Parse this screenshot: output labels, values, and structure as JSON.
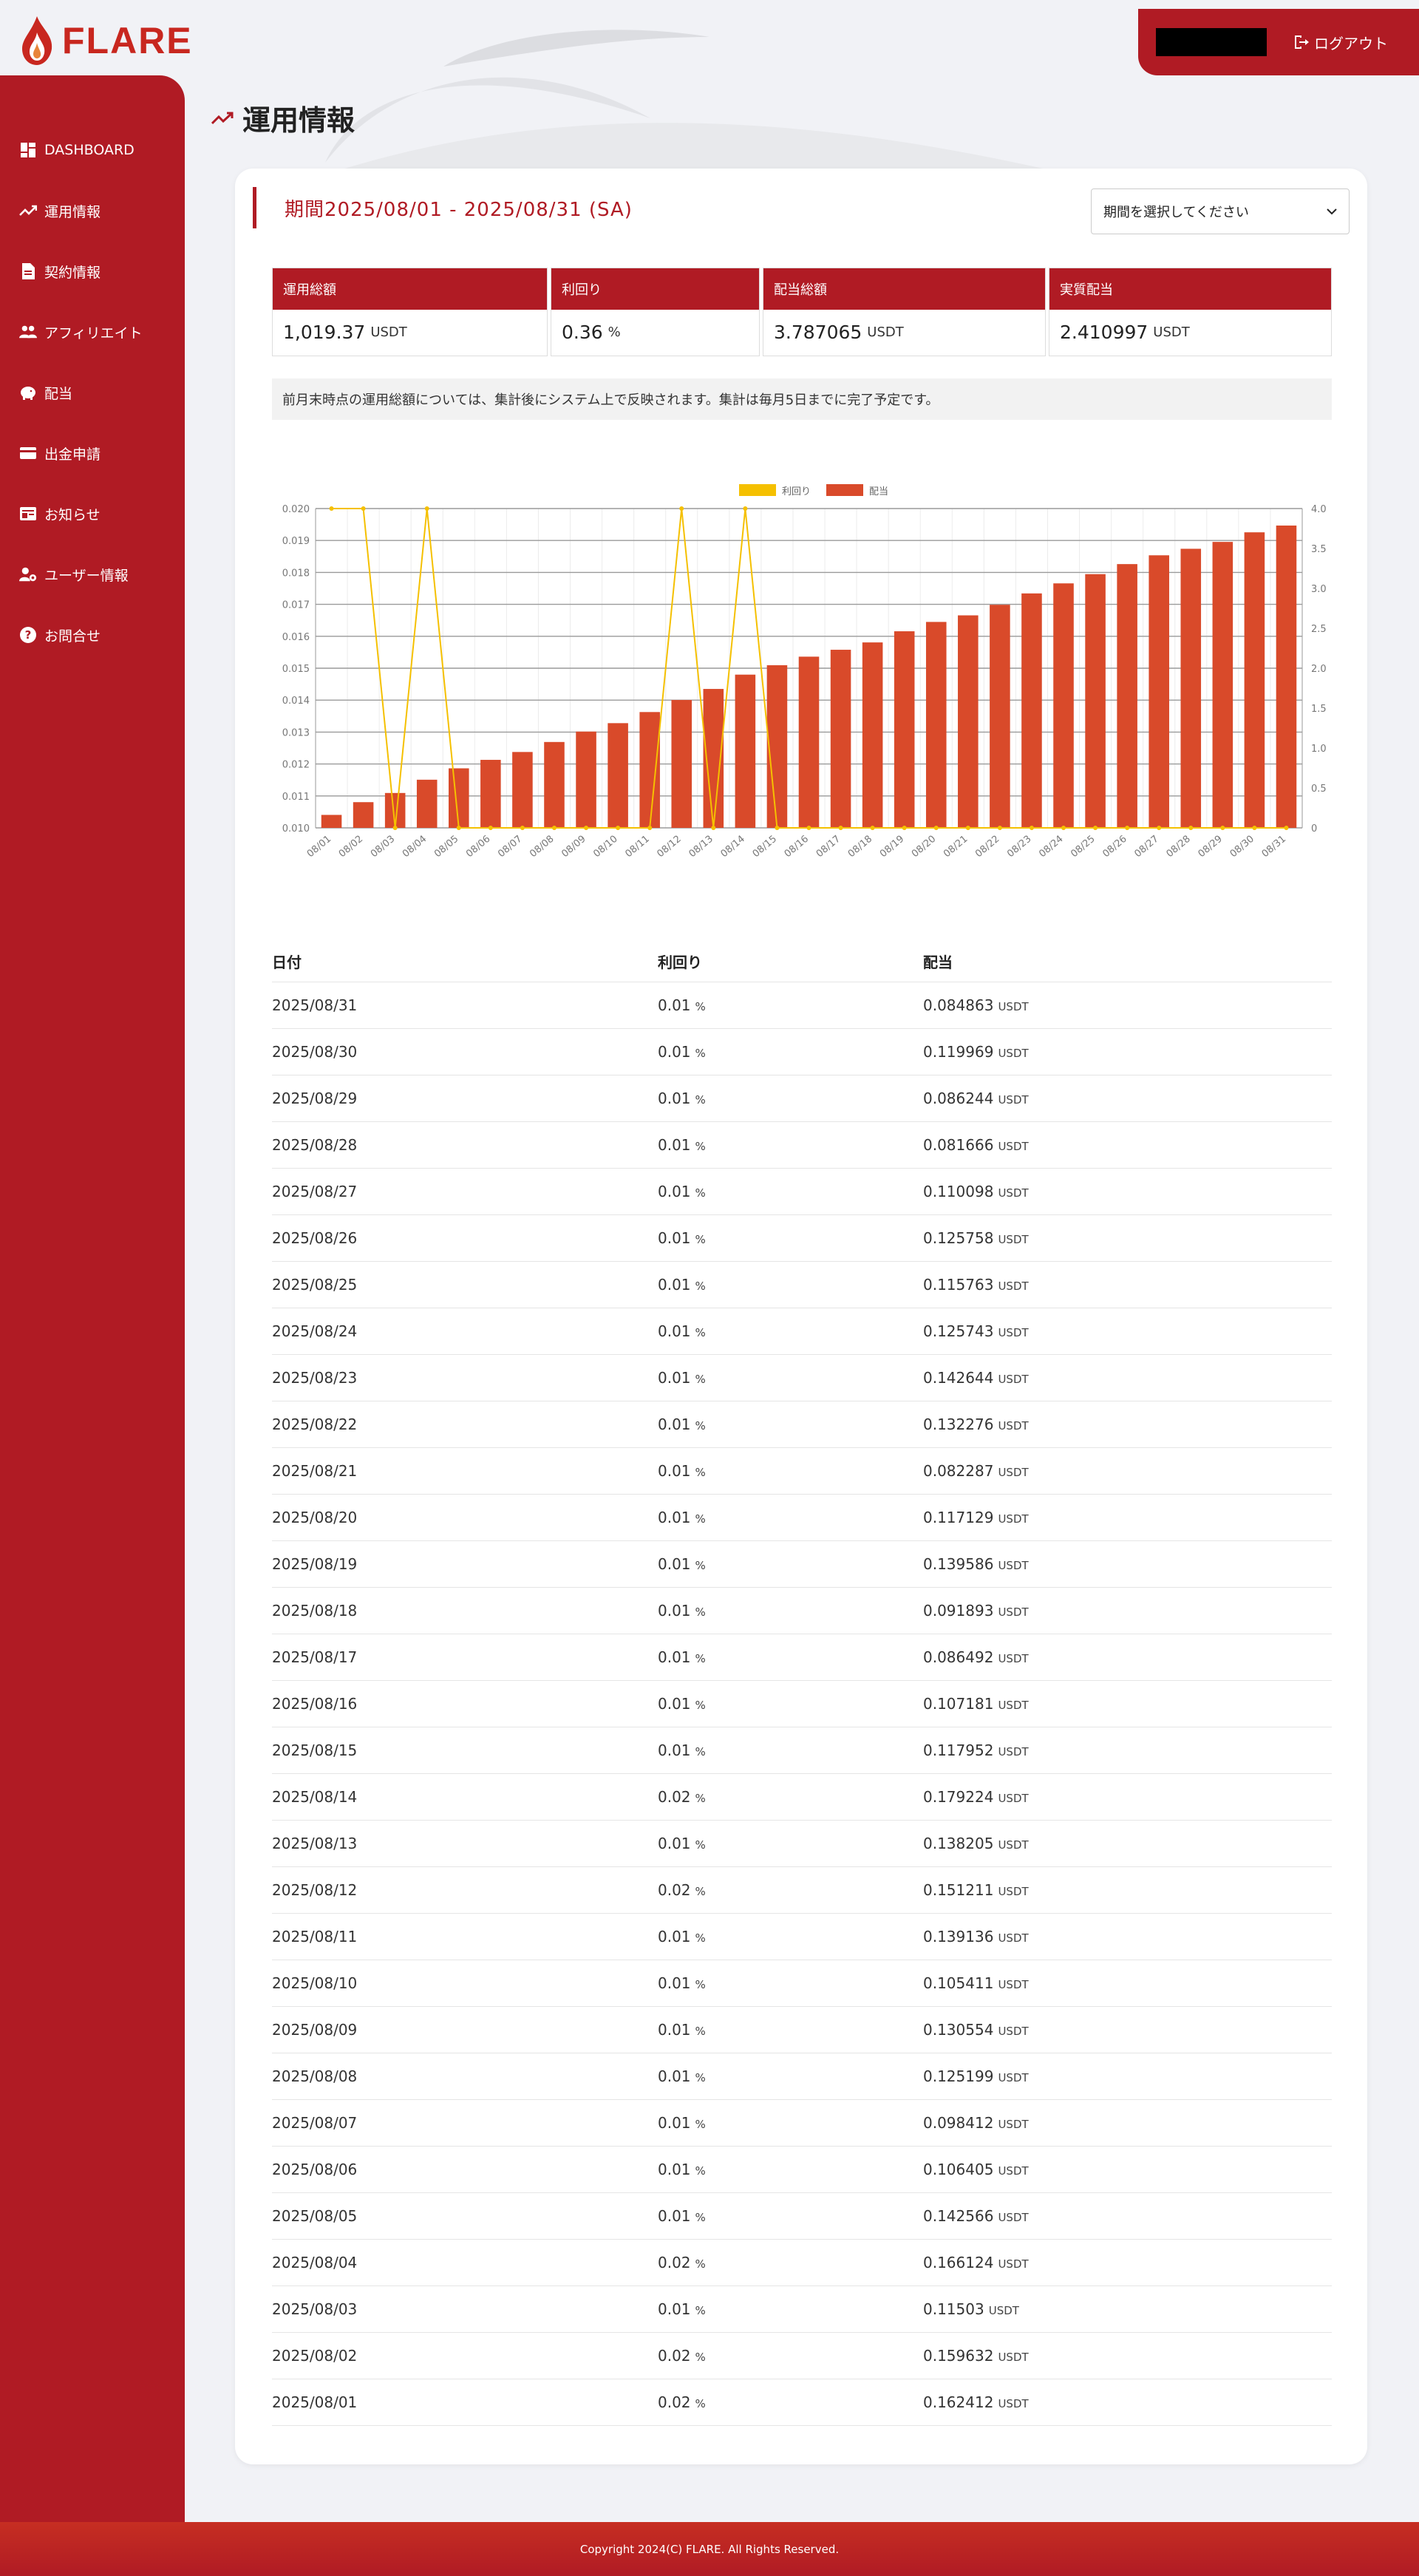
{
  "header": {
    "brand": "FLARE",
    "logout_label": "ログアウト"
  },
  "sidebar": {
    "items": [
      {
        "label": "DASHBOARD",
        "icon": "dashboard-icon"
      },
      {
        "label": "運用情報",
        "icon": "trending-icon"
      },
      {
        "label": "契約情報",
        "icon": "document-icon"
      },
      {
        "label": "アフィリエイト",
        "icon": "people-icon"
      },
      {
        "label": "配当",
        "icon": "piggy-bank-icon"
      },
      {
        "label": "出金申請",
        "icon": "card-icon"
      },
      {
        "label": "お知らせ",
        "icon": "news-icon"
      },
      {
        "label": "ユーザー情報",
        "icon": "user-settings-icon"
      },
      {
        "label": "お問合せ",
        "icon": "help-icon"
      }
    ]
  },
  "page": {
    "title": "運用情報",
    "period_label": "期間2025/08/01 - 2025/08/31 (SA)",
    "period_select_placeholder": "期間を選択してください",
    "notice": "前月末時点の運用総額については、集計後にシステム上で反映されます。集計は毎月5日までに完了予定です。"
  },
  "stats": [
    {
      "label": "運用総額",
      "value": "1,019.37",
      "unit": "USDT"
    },
    {
      "label": "利回り",
      "value": "0.36",
      "unit": "%"
    },
    {
      "label": "配当総額",
      "value": "3.787065",
      "unit": "USDT"
    },
    {
      "label": "実質配当",
      "value": "2.410997",
      "unit": "USDT"
    }
  ],
  "chart_data": {
    "type": "bar",
    "categories": [
      "08/01",
      "08/02",
      "08/03",
      "08/04",
      "08/05",
      "08/06",
      "08/07",
      "08/08",
      "08/09",
      "08/10",
      "08/11",
      "08/12",
      "08/13",
      "08/14",
      "08/15",
      "08/16",
      "08/17",
      "08/18",
      "08/19",
      "08/20",
      "08/21",
      "08/22",
      "08/23",
      "08/24",
      "08/25",
      "08/26",
      "08/27",
      "08/28",
      "08/29",
      "08/30",
      "08/31"
    ],
    "series": [
      {
        "name": "利回り",
        "type": "line",
        "axis": "left",
        "color": "#f5c000",
        "values": [
          0.02,
          0.02,
          0.01,
          0.02,
          0.01,
          0.01,
          0.01,
          0.01,
          0.01,
          0.01,
          0.01,
          0.02,
          0.01,
          0.02,
          0.01,
          0.01,
          0.01,
          0.01,
          0.01,
          0.01,
          0.01,
          0.01,
          0.01,
          0.01,
          0.01,
          0.01,
          0.01,
          0.01,
          0.01,
          0.01,
          0.01
        ]
      },
      {
        "name": "配当",
        "type": "bar",
        "axis": "right",
        "color": "#d94a2a",
        "values": [
          0.162412,
          0.322044,
          0.437074,
          0.603198,
          0.745764,
          0.852169,
          0.950581,
          1.07578,
          1.206334,
          1.311745,
          1.450881,
          1.602092,
          1.740297,
          1.919521,
          2.037473,
          2.144654,
          2.231146,
          2.323039,
          2.462625,
          2.579754,
          2.662041,
          2.794317,
          2.936961,
          3.062704,
          3.178467,
          3.304225,
          3.414323,
          3.495989,
          3.582233,
          3.702202,
          3.787065
        ]
      }
    ],
    "left_axis": {
      "ylim": [
        0.01,
        0.02
      ],
      "ticks": [
        "0.010",
        "0.011",
        "0.012",
        "0.013",
        "0.014",
        "0.015",
        "0.016",
        "0.017",
        "0.018",
        "0.019",
        "0.020"
      ]
    },
    "right_axis": {
      "ylim": [
        0,
        4.0
      ],
      "ticks": [
        "0",
        "0.5",
        "1.0",
        "1.5",
        "2.0",
        "2.5",
        "3.0",
        "3.5",
        "4.0"
      ]
    },
    "legend": "top-center",
    "grid": true
  },
  "table": {
    "headers": [
      "日付",
      "利回り",
      "配当"
    ],
    "rate_unit": "%",
    "dividend_unit": "USDT",
    "rows": [
      [
        "2025/08/31",
        "0.01",
        "0.084863"
      ],
      [
        "2025/08/30",
        "0.01",
        "0.119969"
      ],
      [
        "2025/08/29",
        "0.01",
        "0.086244"
      ],
      [
        "2025/08/28",
        "0.01",
        "0.081666"
      ],
      [
        "2025/08/27",
        "0.01",
        "0.110098"
      ],
      [
        "2025/08/26",
        "0.01",
        "0.125758"
      ],
      [
        "2025/08/25",
        "0.01",
        "0.115763"
      ],
      [
        "2025/08/24",
        "0.01",
        "0.125743"
      ],
      [
        "2025/08/23",
        "0.01",
        "0.142644"
      ],
      [
        "2025/08/22",
        "0.01",
        "0.132276"
      ],
      [
        "2025/08/21",
        "0.01",
        "0.082287"
      ],
      [
        "2025/08/20",
        "0.01",
        "0.117129"
      ],
      [
        "2025/08/19",
        "0.01",
        "0.139586"
      ],
      [
        "2025/08/18",
        "0.01",
        "0.091893"
      ],
      [
        "2025/08/17",
        "0.01",
        "0.086492"
      ],
      [
        "2025/08/16",
        "0.01",
        "0.107181"
      ],
      [
        "2025/08/15",
        "0.01",
        "0.117952"
      ],
      [
        "2025/08/14",
        "0.02",
        "0.179224"
      ],
      [
        "2025/08/13",
        "0.01",
        "0.138205"
      ],
      [
        "2025/08/12",
        "0.02",
        "0.151211"
      ],
      [
        "2025/08/11",
        "0.01",
        "0.139136"
      ],
      [
        "2025/08/10",
        "0.01",
        "0.105411"
      ],
      [
        "2025/08/09",
        "0.01",
        "0.130554"
      ],
      [
        "2025/08/08",
        "0.01",
        "0.125199"
      ],
      [
        "2025/08/07",
        "0.01",
        "0.098412"
      ],
      [
        "2025/08/06",
        "0.01",
        "0.106405"
      ],
      [
        "2025/08/05",
        "0.01",
        "0.142566"
      ],
      [
        "2025/08/04",
        "0.02",
        "0.166124"
      ],
      [
        "2025/08/03",
        "0.01",
        "0.11503"
      ],
      [
        "2025/08/02",
        "0.02",
        "0.159632"
      ],
      [
        "2025/08/01",
        "0.02",
        "0.162412"
      ]
    ]
  },
  "footer": {
    "copyright": "Copyright 2024(C) FLARE. All Rights Reserved."
  },
  "colors": {
    "brand": "#b01b24",
    "bar": "#d94a2a",
    "line": "#f5c000"
  }
}
